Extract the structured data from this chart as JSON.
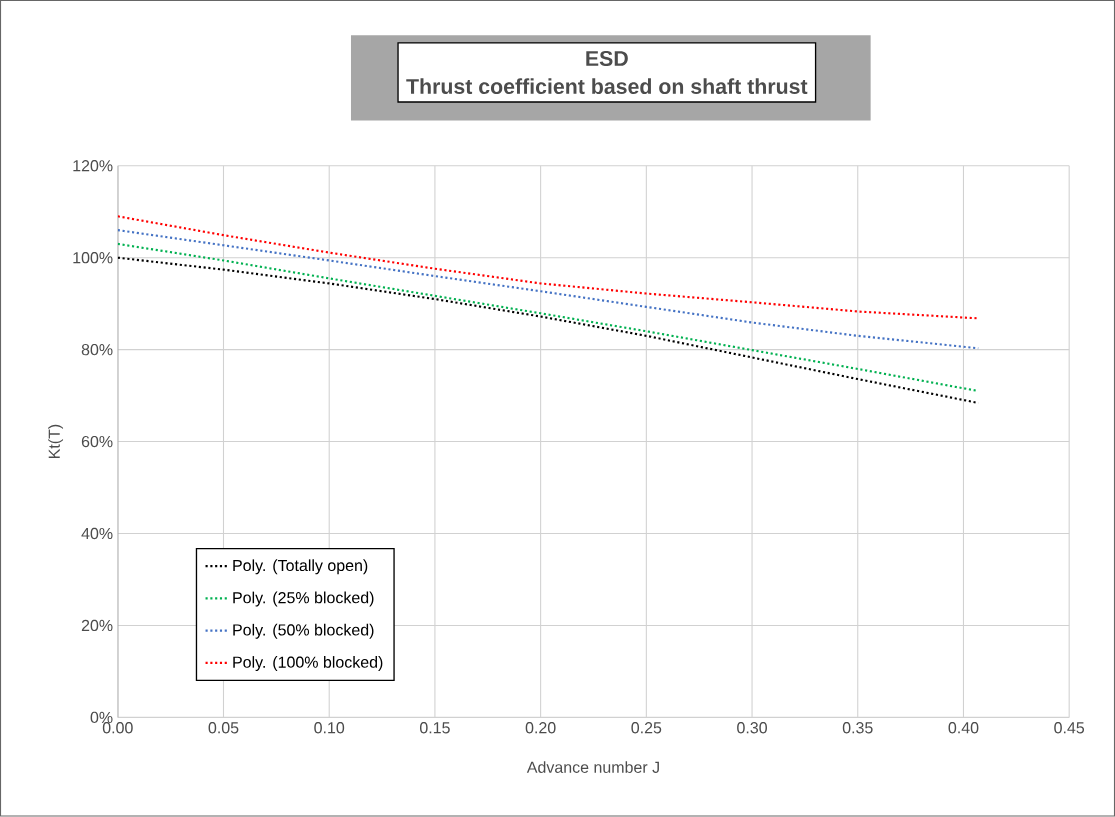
{
  "chart_data": {
    "type": "line",
    "title": "ESD",
    "subtitle": "Thrust coefficient based on shaft thrust",
    "xlabel": "Advance number J",
    "ylabel": "Kt(T)",
    "x": [
      0,
      0.05,
      0.1,
      0.15,
      0.2,
      0.25,
      0.3,
      0.35,
      0.407
    ],
    "series": [
      {
        "name": "Poly. (Totally open)",
        "color": "#000000",
        "values": [
          100,
          97.4,
          94.4,
          91,
          87.2,
          83,
          78.3,
          73.6,
          68.4
        ]
      },
      {
        "name": "Poly. (25% blocked)",
        "color": "#00b050",
        "values": [
          103,
          99.4,
          95.5,
          91.7,
          87.9,
          84,
          79.9,
          75.8,
          71.0
        ]
      },
      {
        "name": "Poly. (50% blocked)",
        "color": "#4472c4",
        "values": [
          106,
          102.7,
          99.4,
          96,
          92.7,
          89.3,
          85.9,
          83,
          80.3
        ]
      },
      {
        "name": "Poly. (100% blocked)",
        "color": "#ff0000",
        "values": [
          109,
          104.9,
          101.1,
          97.6,
          94.4,
          92.2,
          90.3,
          88.3,
          86.8
        ]
      }
    ],
    "xlim": [
      0,
      0.45
    ],
    "ylim": [
      0,
      120
    ],
    "xticks": [
      {
        "value": 0,
        "label": "0.00"
      },
      {
        "value": 0.05,
        "label": "0.05"
      },
      {
        "value": 0.1,
        "label": "0.10"
      },
      {
        "value": 0.15,
        "label": "0.15"
      },
      {
        "value": 0.2,
        "label": "0.20"
      },
      {
        "value": 0.25,
        "label": "0.25"
      },
      {
        "value": 0.3,
        "label": "0.30"
      },
      {
        "value": 0.35,
        "label": "0.35"
      },
      {
        "value": 0.4,
        "label": "0.40"
      },
      {
        "value": 0.45,
        "label": "0.45"
      }
    ],
    "yticks": [
      {
        "value": 0,
        "label": "0%"
      },
      {
        "value": 20,
        "label": "20%"
      },
      {
        "value": 40,
        "label": "40%"
      },
      {
        "value": 60,
        "label": "60%"
      },
      {
        "value": 80,
        "label": "80%"
      },
      {
        "value": 100,
        "label": "100%"
      },
      {
        "value": 120,
        "label": "120%"
      }
    ],
    "grid": true,
    "legend": "bottom left",
    "marker": "none",
    "line_style": "dotted"
  }
}
